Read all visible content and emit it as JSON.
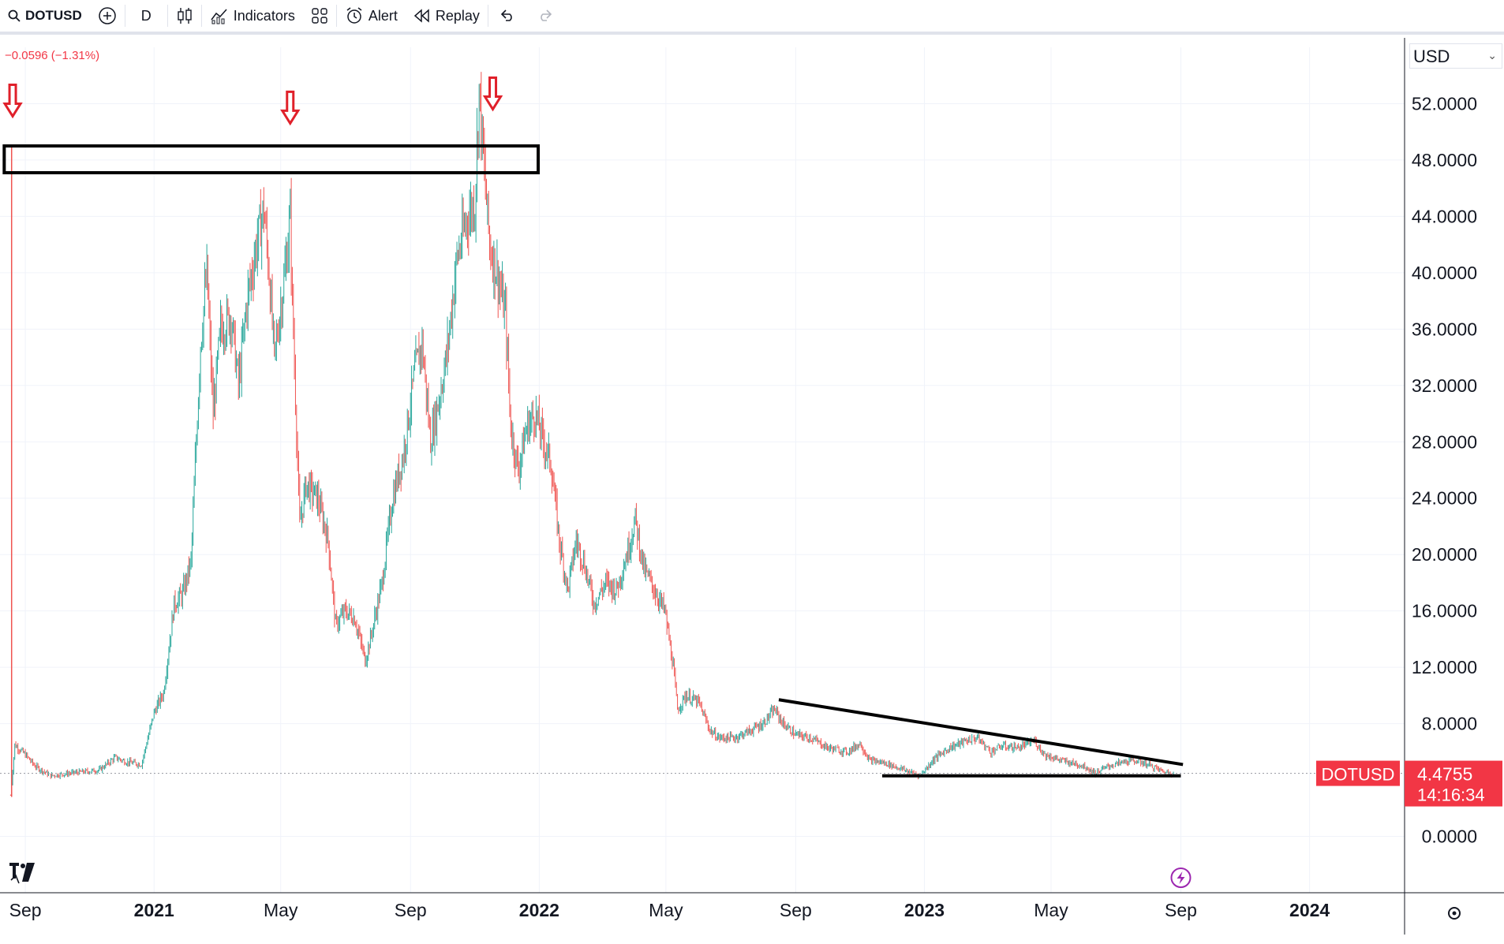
{
  "toolbar": {
    "symbol": "DOTUSD",
    "interval": "D",
    "indicators_label": "Indicators",
    "alert_label": "Alert",
    "replay_label": "Replay"
  },
  "header": {
    "change_text": "−0.0596 (−1.31%)",
    "currency": "USD"
  },
  "price_badge": {
    "symbol": "DOTUSD",
    "price": "4.4755",
    "countdown": "14:16:34",
    "color": "#f23645"
  },
  "colors": {
    "up": "#26a69a",
    "down": "#ef5350",
    "annotation_arrow": "#e0202a",
    "grid": "#f0f3fa"
  },
  "chart_data": {
    "type": "candlestick",
    "y_ticks": [
      "52.0000",
      "48.0000",
      "44.0000",
      "40.0000",
      "36.0000",
      "32.0000",
      "28.0000",
      "24.0000",
      "20.0000",
      "16.0000",
      "12.0000",
      "8.0000",
      "0.0000"
    ],
    "y_tick_values": [
      52,
      48,
      44,
      40,
      36,
      32,
      28,
      24,
      20,
      16,
      12,
      8,
      0
    ],
    "ylim": [
      -4,
      56
    ],
    "x_ticks": [
      {
        "label": "Sep",
        "date": "2020-09-01"
      },
      {
        "label": "2021",
        "date": "2021-01-01",
        "bold": true
      },
      {
        "label": "May",
        "date": "2021-05-01"
      },
      {
        "label": "Sep",
        "date": "2021-09-01"
      },
      {
        "label": "2022",
        "date": "2022-01-01",
        "bold": true
      },
      {
        "label": "May",
        "date": "2022-05-01"
      },
      {
        "label": "Sep",
        "date": "2022-09-01"
      },
      {
        "label": "2023",
        "date": "2023-01-01",
        "bold": true
      },
      {
        "label": "May",
        "date": "2023-05-01"
      },
      {
        "label": "Sep",
        "date": "2023-09-01"
      },
      {
        "label": "2024",
        "date": "2024-01-01",
        "bold": true
      }
    ],
    "xlim": [
      "2020-08-08",
      "2024-03-31"
    ],
    "price_path": [
      [
        "2020-08-18",
        2.9
      ],
      [
        "2020-08-22",
        6.5
      ],
      [
        "2020-09-01",
        5.8
      ],
      [
        "2020-09-10",
        5.0
      ],
      [
        "2020-09-25",
        4.3
      ],
      [
        "2020-10-15",
        4.5
      ],
      [
        "2020-11-10",
        4.7
      ],
      [
        "2020-11-25",
        5.6
      ],
      [
        "2020-12-05",
        5.3
      ],
      [
        "2020-12-20",
        5.1
      ],
      [
        "2021-01-01",
        8.8
      ],
      [
        "2021-01-10",
        10.2
      ],
      [
        "2021-01-20",
        16.5
      ],
      [
        "2021-01-28",
        17.2
      ],
      [
        "2021-02-05",
        19.5
      ],
      [
        "2021-02-14",
        35.0
      ],
      [
        "2021-02-20",
        40.0
      ],
      [
        "2021-02-26",
        30.0
      ],
      [
        "2021-03-05",
        36.0
      ],
      [
        "2021-03-15",
        37.0
      ],
      [
        "2021-03-22",
        32.0
      ],
      [
        "2021-03-30",
        38.0
      ],
      [
        "2021-04-08",
        42.0
      ],
      [
        "2021-04-15",
        44.5
      ],
      [
        "2021-04-20",
        40.0
      ],
      [
        "2021-04-25",
        34.0
      ],
      [
        "2021-05-05",
        40.0
      ],
      [
        "2021-05-10",
        44.0
      ],
      [
        "2021-05-12",
        38.0
      ],
      [
        "2021-05-19",
        22.0
      ],
      [
        "2021-05-25",
        25.0
      ],
      [
        "2021-06-05",
        24.0
      ],
      [
        "2021-06-15",
        21.0
      ],
      [
        "2021-06-22",
        15.0
      ],
      [
        "2021-07-01",
        16.0
      ],
      [
        "2021-07-10",
        15.5
      ],
      [
        "2021-07-20",
        12.5
      ],
      [
        "2021-07-25",
        14.0
      ],
      [
        "2021-08-05",
        18.0
      ],
      [
        "2021-08-15",
        24.0
      ],
      [
        "2021-08-25",
        27.0
      ],
      [
        "2021-09-05",
        33.0
      ],
      [
        "2021-09-12",
        35.0
      ],
      [
        "2021-09-20",
        28.0
      ],
      [
        "2021-09-28",
        31.0
      ],
      [
        "2021-10-05",
        34.0
      ],
      [
        "2021-10-15",
        41.0
      ],
      [
        "2021-10-25",
        44.0
      ],
      [
        "2021-11-01",
        45.0
      ],
      [
        "2021-11-05",
        53.0
      ],
      [
        "2021-11-10",
        47.0
      ],
      [
        "2021-11-15",
        42.0
      ],
      [
        "2021-11-22",
        40.0
      ],
      [
        "2021-11-30",
        37.0
      ],
      [
        "2021-12-05",
        29.0
      ],
      [
        "2021-12-12",
        26.0
      ],
      [
        "2021-12-20",
        29.0
      ],
      [
        "2021-12-28",
        30.0
      ],
      [
        "2022-01-05",
        28.0
      ],
      [
        "2022-01-12",
        26.5
      ],
      [
        "2022-01-20",
        21.0
      ],
      [
        "2022-01-28",
        17.5
      ],
      [
        "2022-02-05",
        21.0
      ],
      [
        "2022-02-12",
        19.5
      ],
      [
        "2022-02-22",
        16.5
      ],
      [
        "2022-03-05",
        18.0
      ],
      [
        "2022-03-15",
        17.5
      ],
      [
        "2022-03-25",
        20.0
      ],
      [
        "2022-04-02",
        22.5
      ],
      [
        "2022-04-10",
        19.0
      ],
      [
        "2022-04-20",
        17.5
      ],
      [
        "2022-04-30",
        16.0
      ],
      [
        "2022-05-08",
        12.0
      ],
      [
        "2022-05-12",
        9.0
      ],
      [
        "2022-05-20",
        10.0
      ],
      [
        "2022-06-01",
        9.5
      ],
      [
        "2022-06-12",
        7.5
      ],
      [
        "2022-06-20",
        7.0
      ],
      [
        "2022-07-05",
        7.0
      ],
      [
        "2022-07-20",
        7.5
      ],
      [
        "2022-08-01",
        8.0
      ],
      [
        "2022-08-12",
        9.0
      ],
      [
        "2022-08-20",
        8.0
      ],
      [
        "2022-09-01",
        7.2
      ],
      [
        "2022-09-15",
        7.0
      ],
      [
        "2022-10-01",
        6.3
      ],
      [
        "2022-10-20",
        6.0
      ],
      [
        "2022-11-01",
        6.6
      ],
      [
        "2022-11-10",
        5.4
      ],
      [
        "2022-11-25",
        5.2
      ],
      [
        "2022-12-10",
        4.8
      ],
      [
        "2022-12-28",
        4.3
      ],
      [
        "2023-01-10",
        5.5
      ],
      [
        "2023-01-25",
        6.3
      ],
      [
        "2023-02-10",
        6.8
      ],
      [
        "2023-02-20",
        7.0
      ],
      [
        "2023-03-05",
        6.0
      ],
      [
        "2023-03-15",
        6.4
      ],
      [
        "2023-04-01",
        6.3
      ],
      [
        "2023-04-15",
        6.8
      ],
      [
        "2023-04-25",
        5.8
      ],
      [
        "2023-05-10",
        5.4
      ],
      [
        "2023-06-01",
        5.0
      ],
      [
        "2023-06-12",
        4.5
      ],
      [
        "2023-06-25",
        5.0
      ],
      [
        "2023-07-10",
        5.3
      ],
      [
        "2023-07-20",
        5.4
      ],
      [
        "2023-08-01",
        5.1
      ],
      [
        "2023-08-15",
        4.6
      ],
      [
        "2023-08-25",
        4.45
      ]
    ],
    "annotations": {
      "resistance_zone": {
        "x": [
          "2020-08-12",
          "2021-12-31"
        ],
        "y": [
          47.1,
          49.0
        ]
      },
      "down_arrows": [
        {
          "x": "2020-08-20",
          "y": 52.0
        },
        {
          "x": "2021-05-10",
          "y": 51.5
        },
        {
          "x": "2021-11-18",
          "y": 52.5
        }
      ],
      "descending_trendline": {
        "x": [
          "2022-08-16",
          "2023-09-03"
        ],
        "y": [
          9.7,
          5.1
        ]
      },
      "support_line": {
        "x": [
          "2022-11-22",
          "2023-09-01"
        ],
        "y": [
          4.3,
          4.3
        ]
      },
      "last_price_line": 4.4755
    }
  }
}
